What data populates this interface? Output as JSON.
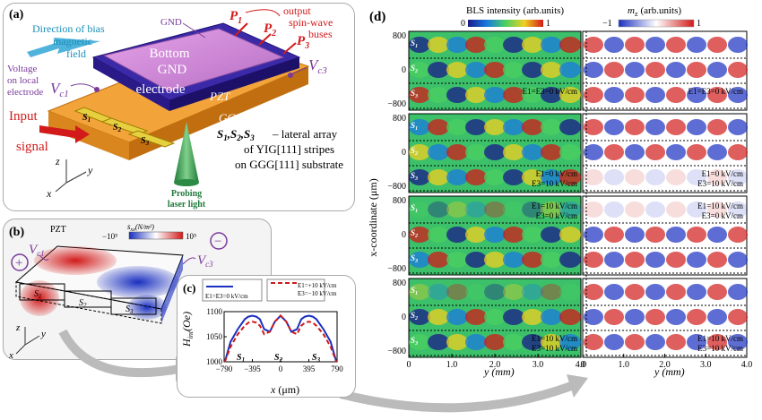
{
  "panel_a": {
    "label": "(a)",
    "bias_label": [
      "Direction of bias",
      "magnetic",
      "field"
    ],
    "gnd": "GND",
    "output_label": [
      "output",
      "spin-wave",
      "buses"
    ],
    "outputs": [
      "P",
      "P",
      "P"
    ],
    "output_subs": [
      "1",
      "2",
      "3"
    ],
    "voltage_label": [
      "Voltage",
      "on local",
      "electrode"
    ],
    "vc1": "V",
    "vc1_sub": "c1",
    "vc3": "V",
    "vc3_sub": "c3",
    "electrode": [
      "Bottom",
      "GND",
      "electrode"
    ],
    "pzt": "PZT",
    "ggg": "GGG",
    "input": [
      "Input",
      "signal"
    ],
    "stripes": [
      "S",
      "S",
      "S"
    ],
    "stripe_subs": [
      "1",
      "2",
      "3"
    ],
    "desc_lead": "S",
    "desc": [
      "– lateral array",
      "of YIG[111] stripes",
      "on GGG[111] substrate"
    ],
    "probe": [
      "Probing",
      "laser light"
    ],
    "axes": [
      "z",
      "y",
      "x"
    ]
  },
  "panel_b": {
    "label": "(b)",
    "pzt": "PZT",
    "colorbar_title": "s",
    "colorbar_sub": "xx",
    "colorbar_unit": "(N/m²)",
    "colorbar_min": "−10⁵",
    "colorbar_max": "10⁵",
    "vc1": "V",
    "vc1_sub": "c1",
    "vc3": "V",
    "vc3_sub": "c3",
    "plus": "+",
    "minus": "−",
    "stripes": [
      "S",
      "S",
      "S"
    ],
    "stripe_subs": [
      "1",
      "2",
      "3"
    ],
    "axes": [
      "z",
      "y",
      "x"
    ]
  },
  "panel_c": {
    "label": "(c)",
    "legend_1": "E1=E3=0 kV/cm",
    "legend_2a": "E1=+10 kV/cm",
    "legend_2b": "E3=−10 kV/cm",
    "ylabel": "H",
    "ylabel_sub": "int",
    "ylabel_unit": "(Oe)",
    "xlabel": "x",
    "xlabel_unit": "(μm)",
    "stripe_labels": [
      "S",
      "S",
      "S"
    ],
    "stripe_subs": [
      "1",
      "2",
      "3"
    ],
    "chart_data": {
      "type": "line",
      "x_ticks": [
        "−790",
        "−395",
        "0",
        "395",
        "790"
      ],
      "y_ticks": [
        "1000",
        "1050",
        "1100"
      ],
      "ylim": [
        1000,
        1100
      ],
      "xlim": [
        -790,
        790
      ],
      "series": [
        {
          "name": "E1=E3=0 kV/cm",
          "color": "#1a2fc0",
          "style": "solid",
          "x": [
            -780,
            -700,
            -600,
            -500,
            -450,
            -395,
            -340,
            -290,
            -230,
            -150,
            -80,
            0,
            80,
            150,
            230,
            290,
            340,
            395,
            450,
            500,
            600,
            700,
            780
          ],
          "y": [
            1000,
            1040,
            1065,
            1085,
            1090,
            1092,
            1090,
            1085,
            1065,
            1060,
            1080,
            1092,
            1080,
            1060,
            1065,
            1085,
            1090,
            1092,
            1090,
            1085,
            1065,
            1040,
            1000
          ]
        },
        {
          "name": "E1=+10 kV/cm, E3=−10 kV/cm",
          "color": "#cc1a1a",
          "style": "dashed",
          "x": [
            -780,
            -700,
            -600,
            -500,
            -450,
            -395,
            -340,
            -290,
            -230,
            -150,
            -80,
            0,
            80,
            150,
            230,
            290,
            340,
            395,
            450,
            500,
            600,
            700,
            780
          ],
          "y": [
            1000,
            1030,
            1055,
            1072,
            1078,
            1080,
            1078,
            1072,
            1055,
            1060,
            1080,
            1092,
            1080,
            1060,
            1055,
            1072,
            1078,
            1080,
            1078,
            1072,
            1055,
            1030,
            1000
          ]
        }
      ]
    }
  },
  "panel_d": {
    "label": "(d)",
    "title_left": "BLS intensity (arb.units)",
    "title_right_var": "m",
    "title_right_sub": "z",
    "title_right_unit": "(arb.units)",
    "cbar_left_min": "0",
    "cbar_left_max": "1",
    "cbar_right_min": "−1",
    "cbar_right_max": "1",
    "ylabel": "x-coordinate (μm)",
    "xlabel": "y (mm)",
    "x_ticks": [
      "0",
      "1.0",
      "2.0",
      "3.0",
      "4.0"
    ],
    "y_ticks": [
      "800",
      "0",
      "−800"
    ],
    "stripes": [
      "S",
      "S",
      "S"
    ],
    "stripe_subs": [
      "1",
      "2",
      "3"
    ],
    "rows": [
      {
        "left_a": "E1=E3=0 kV/cm",
        "left_b": "",
        "right_a": "E1=E3=0 kV/cm",
        "right_b": ""
      },
      {
        "left_a": "E1=0 kV/cm",
        "left_b": "E3=10 kV/cm",
        "right_a": "E1=0 kV/cm",
        "right_b": "E3=10 kV/cm"
      },
      {
        "left_a": "E1=10 kV/cm",
        "left_b": "E3=0 kV/cm",
        "right_a": "E1=10 kV/cm",
        "right_b": "E3=0 kV/cm"
      },
      {
        "left_a": "E1=10 kV/cm",
        "left_b": "E3=10 kV/cm",
        "right_a": "E1=10 kV/cm",
        "right_b": "E3=10 kV/cm"
      }
    ]
  },
  "colors": {
    "red": "#d21a1a",
    "blue": "#1a2fc0",
    "purple": "#7a3a9a",
    "teal": "#2aa0c8"
  }
}
